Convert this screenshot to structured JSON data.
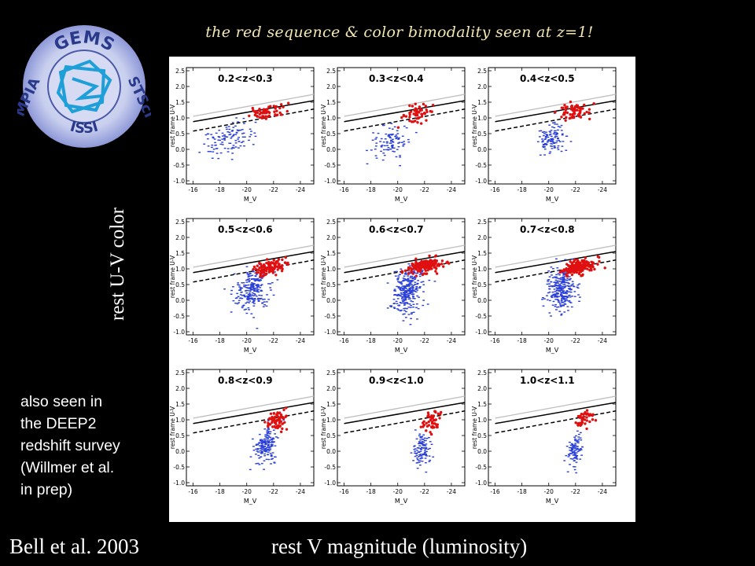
{
  "slide": {
    "title": "the red sequence & color bimodality seen at z=1!",
    "y_axis_caption": "rest U-V color",
    "x_axis_caption": "rest V magnitude (luminosity)",
    "credit": "Bell et al. 2003",
    "note_lines": [
      "also seen in",
      "the DEEP2",
      "redshift survey",
      "(Willmer et al.",
      "in prep)"
    ]
  },
  "logo": {
    "top_text": "GEMS",
    "left_text": "MPIA",
    "right_text": "STScI",
    "bottom_text": "ISSI"
  },
  "colors": {
    "red": "#e01010",
    "blue": "#2a3fd8",
    "background": "#000000",
    "title": "#f2e6b3"
  },
  "chart_data": {
    "type": "scatter",
    "layout": "3x3 panels",
    "xlabel": "M_V",
    "ylabel": "rest frame U-V",
    "xlim": [
      -15.5,
      -25
    ],
    "ylim": [
      -1.1,
      2.6
    ],
    "xticks": [
      "-16",
      "-18",
      "-20",
      "-22",
      "-24"
    ],
    "yticks": [
      "-1.0",
      "-0.5",
      "0.0",
      "0.5",
      "1.0",
      "1.5",
      "2.0",
      "2.5"
    ],
    "series": [
      {
        "name": "red",
        "color": "#e01010"
      },
      {
        "name": "blue",
        "color": "#2a3fd8"
      }
    ],
    "panels": [
      {
        "label": "0.2<z<0.3",
        "red_center": [
          -21.5,
          1.2
        ],
        "red_spread": [
          1.4,
          0.22
        ],
        "red_count": 55,
        "blue_center": [
          -18.6,
          0.3
        ],
        "blue_spread": [
          2.0,
          0.25
        ],
        "blue_count": 110
      },
      {
        "label": "0.3<z<0.4",
        "red_center": [
          -21.5,
          1.15
        ],
        "red_spread": [
          1.3,
          0.22
        ],
        "red_count": 50,
        "blue_center": [
          -19.5,
          0.25
        ],
        "blue_spread": [
          1.3,
          0.25
        ],
        "blue_count": 100
      },
      {
        "label": "0.4<z<0.5",
        "red_center": [
          -21.8,
          1.2
        ],
        "red_spread": [
          1.1,
          0.22
        ],
        "red_count": 65,
        "blue_center": [
          -20.2,
          0.3
        ],
        "blue_spread": [
          1.1,
          0.25
        ],
        "blue_count": 110
      },
      {
        "label": "0.5<z<0.6",
        "red_center": [
          -21.9,
          1.05
        ],
        "red_spread": [
          1.2,
          0.2
        ],
        "red_count": 100,
        "blue_center": [
          -20.4,
          0.35
        ],
        "blue_spread": [
          1.3,
          0.32
        ],
        "blue_count": 240
      },
      {
        "label": "0.6<z<0.7",
        "red_center": [
          -22.1,
          1.1
        ],
        "red_spread": [
          1.3,
          0.18
        ],
        "red_count": 150,
        "blue_center": [
          -20.7,
          0.3
        ],
        "blue_spread": [
          1.1,
          0.35
        ],
        "blue_count": 300
      },
      {
        "label": "0.7<z<0.8",
        "red_center": [
          -22.2,
          1.05
        ],
        "red_spread": [
          1.2,
          0.2
        ],
        "red_count": 150,
        "blue_center": [
          -21.0,
          0.35
        ],
        "blue_spread": [
          1.0,
          0.35
        ],
        "blue_count": 280
      },
      {
        "label": "0.8<z<0.9",
        "red_center": [
          -22.3,
          1.0
        ],
        "red_spread": [
          0.9,
          0.25
        ],
        "red_count": 70,
        "blue_center": [
          -21.4,
          0.2
        ],
        "blue_spread": [
          0.8,
          0.3
        ],
        "blue_count": 170
      },
      {
        "label": "0.9<z<1.0",
        "red_center": [
          -22.6,
          0.95
        ],
        "red_spread": [
          0.7,
          0.3
        ],
        "red_count": 45,
        "blue_center": [
          -21.8,
          0.05
        ],
        "blue_spread": [
          0.6,
          0.25
        ],
        "blue_count": 110
      },
      {
        "label": "1.0<z<1.1",
        "red_center": [
          -22.7,
          1.05
        ],
        "red_spread": [
          0.8,
          0.25
        ],
        "red_count": 40,
        "blue_center": [
          -22.0,
          0.05
        ],
        "blue_spread": [
          0.5,
          0.25
        ],
        "blue_count": 100
      }
    ],
    "lines": [
      {
        "style": "grey",
        "color": "#bdbdbd",
        "y_at_minus16": 1.05,
        "y_at_minus25": 1.75
      },
      {
        "style": "solid",
        "color": "#000000",
        "y_at_minus16": 0.88,
        "y_at_minus25": 1.55
      },
      {
        "style": "dashed",
        "color": "#000000",
        "y_at_minus16": 0.58,
        "y_at_minus25": 1.28
      }
    ]
  }
}
